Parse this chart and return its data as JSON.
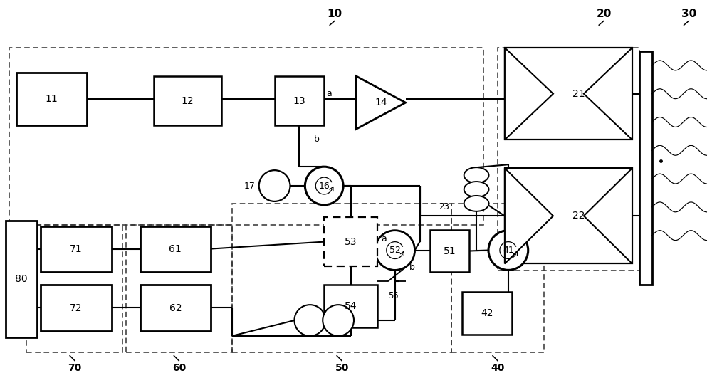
{
  "bg": "#ffffff",
  "fig_w": 10.0,
  "fig_h": 5.31,
  "dpi": 100,
  "xlim": [
    0,
    100
  ],
  "ylim": [
    0,
    53.1
  ]
}
